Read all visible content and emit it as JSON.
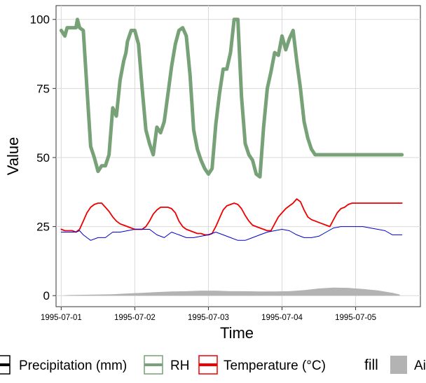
{
  "chart_data": {
    "type": "line",
    "xlabel": "Time",
    "ylabel": "Value",
    "ylim": [
      -4,
      105
    ],
    "y_ticks": [
      0,
      25,
      50,
      75,
      100
    ],
    "x_ticks": [
      "1995-07-01",
      "1995-07-02",
      "1995-07-03",
      "1995-07-04",
      "1995-07-05"
    ],
    "x_range_days": [
      -0.07,
      4.88
    ],
    "grid": true,
    "legend_position": "bottom",
    "series": [
      {
        "name": "RH",
        "color": "#77a177",
        "x": [
          0,
          0.05,
          0.08,
          0.15,
          0.2,
          0.22,
          0.25,
          0.3,
          0.35,
          0.4,
          0.45,
          0.5,
          0.55,
          0.6,
          0.65,
          0.7,
          0.75,
          0.8,
          0.85,
          0.88,
          0.9,
          0.95,
          1.0,
          1.05,
          1.1,
          1.15,
          1.2,
          1.25,
          1.3,
          1.35,
          1.4,
          1.45,
          1.5,
          1.55,
          1.6,
          1.65,
          1.7,
          1.75,
          1.8,
          1.85,
          1.9,
          1.95,
          2.0,
          2.05,
          2.1,
          2.15,
          2.2,
          2.25,
          2.3,
          2.35,
          2.4,
          2.45,
          2.5,
          2.55,
          2.6,
          2.65,
          2.7,
          2.75,
          2.8,
          2.85,
          2.9,
          2.95,
          3.0,
          3.05,
          3.1,
          3.15,
          3.2,
          3.25,
          3.3,
          3.35,
          3.4,
          3.45,
          3.5,
          3.55,
          3.6,
          3.65,
          3.7,
          3.75,
          3.8,
          3.85,
          3.9,
          3.95,
          4.0,
          4.05,
          4.1,
          4.15,
          4.2,
          4.25,
          4.3,
          4.35,
          4.4,
          4.45,
          4.5,
          4.55,
          4.6,
          4.63
        ],
        "values": [
          96,
          94,
          97,
          97,
          97,
          100,
          97,
          96,
          75,
          54,
          50,
          45,
          47,
          47,
          51,
          68,
          65,
          78,
          85,
          88,
          92,
          96,
          96,
          91,
          75,
          60,
          55,
          51,
          61,
          59,
          63,
          73,
          83,
          91,
          96,
          97,
          94,
          80,
          60,
          53,
          49,
          46,
          44,
          46,
          62,
          73,
          82,
          82,
          88,
          100,
          100,
          72,
          55,
          51,
          49,
          44,
          43,
          61,
          75,
          81,
          88,
          87,
          94,
          89,
          93,
          96,
          85,
          75,
          63,
          57,
          53,
          51,
          51,
          51,
          51,
          51,
          51,
          51,
          51,
          51,
          51,
          51,
          51,
          51,
          51,
          51,
          51,
          51,
          51,
          51,
          51,
          51,
          51,
          51,
          51,
          51
        ]
      },
      {
        "name": "Temperature (°C)",
        "color": "#ee0000",
        "x": [
          0,
          0.05,
          0.1,
          0.15,
          0.2,
          0.25,
          0.3,
          0.35,
          0.4,
          0.45,
          0.5,
          0.55,
          0.6,
          0.65,
          0.7,
          0.75,
          0.8,
          0.85,
          0.9,
          0.95,
          1.0,
          1.05,
          1.1,
          1.15,
          1.2,
          1.25,
          1.3,
          1.35,
          1.4,
          1.45,
          1.5,
          1.55,
          1.6,
          1.65,
          1.7,
          1.75,
          1.8,
          1.85,
          1.9,
          1.95,
          2.0,
          2.05,
          2.1,
          2.15,
          2.2,
          2.25,
          2.3,
          2.35,
          2.4,
          2.45,
          2.5,
          2.55,
          2.6,
          2.65,
          2.7,
          2.75,
          2.8,
          2.85,
          2.9,
          2.95,
          3.0,
          3.05,
          3.1,
          3.15,
          3.2,
          3.25,
          3.3,
          3.35,
          3.4,
          3.45,
          3.5,
          3.55,
          3.6,
          3.65,
          3.7,
          3.75,
          3.8,
          3.85,
          3.9,
          3.95,
          4.0,
          4.05,
          4.1,
          4.15,
          4.2,
          4.25,
          4.3,
          4.35,
          4.4,
          4.45,
          4.5,
          4.55,
          4.6,
          4.63
        ],
        "values": [
          24,
          23.5,
          23.5,
          23.5,
          23,
          24,
          27,
          30,
          32,
          33,
          33.5,
          33.5,
          32,
          30.5,
          28.5,
          27,
          26,
          25.5,
          25,
          24.5,
          24,
          24,
          24,
          25,
          27,
          29.5,
          31,
          32,
          32,
          32,
          31.5,
          30,
          27,
          25,
          24,
          23.5,
          23,
          22.5,
          22.5,
          22,
          22,
          22.5,
          25,
          28,
          31,
          32.5,
          33,
          33.5,
          33,
          31.5,
          29,
          27,
          25.5,
          25,
          24.5,
          24,
          23.5,
          23.5,
          26,
          28.5,
          30,
          31.5,
          32.5,
          33.5,
          35,
          34,
          31,
          28.5,
          27.5,
          27,
          26.5,
          26,
          25.5,
          25,
          27.5,
          30,
          31.5,
          32,
          33,
          33.5,
          33.5,
          33.5,
          33.5,
          33.5,
          33.5,
          33.5,
          33.5,
          33.5,
          33.5,
          33.5,
          33.5,
          33.5,
          33.5,
          33.5
        ]
      },
      {
        "name": "Precipitation (mm)",
        "color": "#0000cc",
        "x": [
          0,
          0.1,
          0.2,
          0.25,
          0.3,
          0.35,
          0.4,
          0.5,
          0.6,
          0.65,
          0.7,
          0.8,
          0.9,
          1.0,
          1.1,
          1.2,
          1.3,
          1.4,
          1.5,
          1.6,
          1.7,
          1.8,
          1.9,
          2.0,
          2.1,
          2.2,
          2.3,
          2.4,
          2.5,
          2.6,
          2.7,
          2.8,
          2.9,
          3.0,
          3.1,
          3.2,
          3.3,
          3.4,
          3.5,
          3.6,
          3.7,
          3.8,
          3.9,
          4.0,
          4.1,
          4.2,
          4.3,
          4.4,
          4.5,
          4.6,
          4.63
        ],
        "values": [
          23,
          23,
          23,
          23.5,
          22,
          21,
          20,
          21,
          21,
          22,
          23,
          23,
          23.5,
          24,
          24,
          24,
          22,
          21,
          23,
          22,
          21,
          21,
          21.5,
          22,
          23,
          22,
          21,
          20,
          20,
          21,
          22,
          23,
          23.5,
          24,
          23.5,
          22,
          21,
          21,
          21.5,
          23,
          24.5,
          25,
          25,
          25,
          25,
          24.5,
          24,
          23.5,
          22,
          22,
          22
        ]
      }
    ],
    "area_series": [
      {
        "name": "",
        "color": "#b3b3b3",
        "x": [
          0.0,
          0.1,
          0.3,
          0.5,
          0.7,
          0.9,
          1.1,
          1.3,
          1.5,
          1.7,
          1.9,
          2.1,
          2.3,
          2.5,
          2.7,
          2.9,
          3.1,
          3.3,
          3.5,
          3.7,
          3.9,
          4.1,
          4.3,
          4.5,
          4.6
        ],
        "values": [
          0,
          0.2,
          0.3,
          0.4,
          0.5,
          0.8,
          1.0,
          1.3,
          1.5,
          1.6,
          1.8,
          1.8,
          1.6,
          1.6,
          1.5,
          1.5,
          1.6,
          2.0,
          2.6,
          2.9,
          2.8,
          2.4,
          1.9,
          1.0,
          0.4
        ]
      }
    ],
    "legend": {
      "items": [
        {
          "label": "Precipitation (mm)",
          "color": "#000000"
        },
        {
          "label": "RH",
          "color": "#77a177"
        },
        {
          "label": "Temperature (°C)",
          "color": "#ee0000"
        }
      ],
      "fill_title": "fill",
      "fill_item": {
        "label": "Ai",
        "color": "#b3b3b3"
      }
    }
  }
}
